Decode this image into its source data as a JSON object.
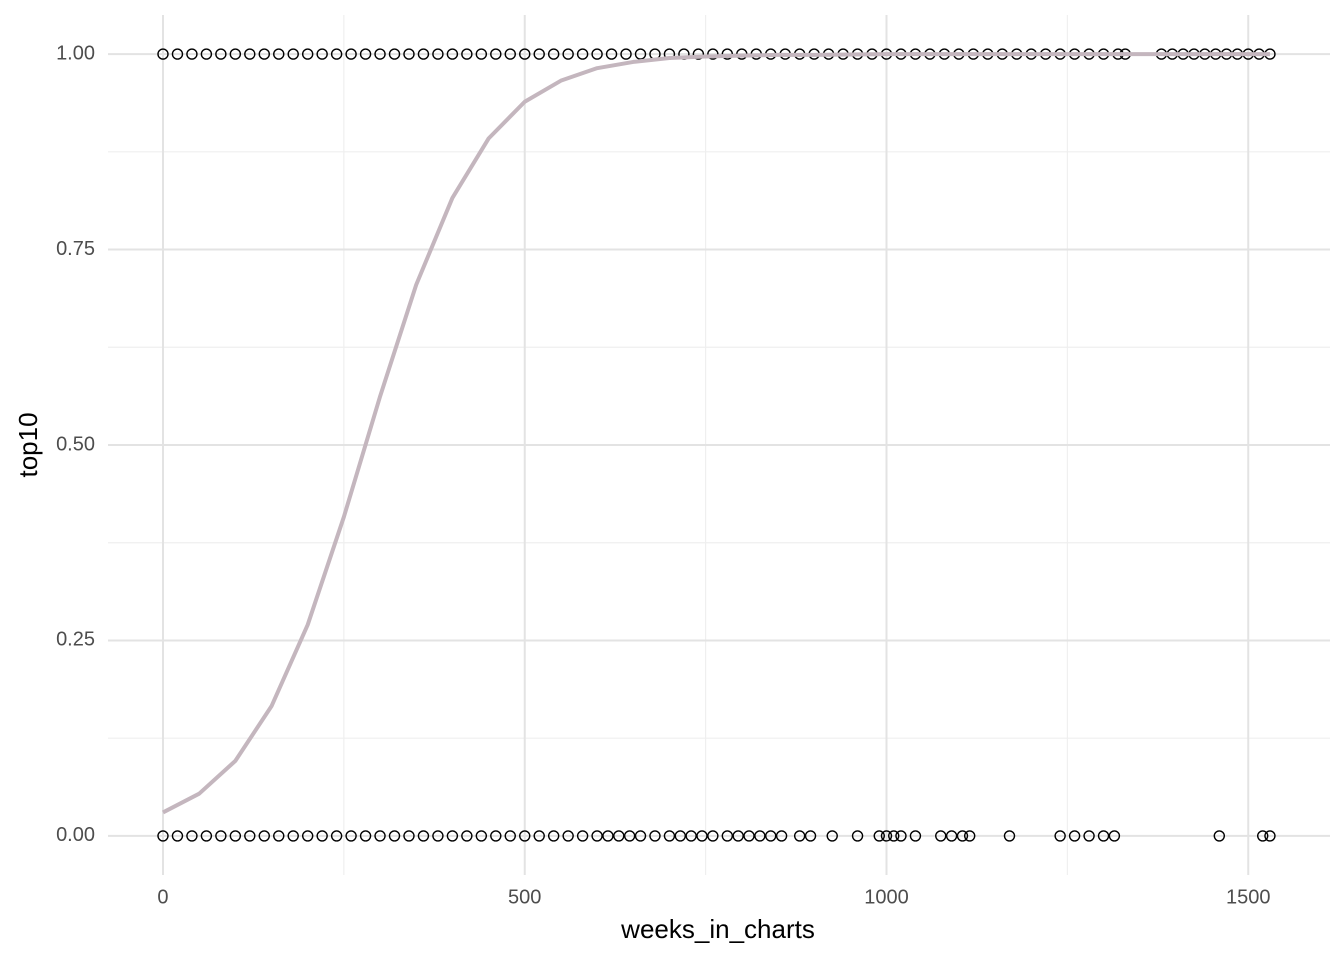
{
  "chart_data": {
    "type": "scatter",
    "x_label": "weeks_in_charts",
    "y_label": "top10",
    "x": [
      0,
      20,
      40,
      60,
      80,
      100,
      120,
      140,
      160,
      180,
      200,
      220,
      240,
      260,
      280,
      300,
      320,
      340,
      360,
      380,
      400,
      420,
      440,
      460,
      480,
      500,
      520,
      540,
      560,
      580,
      600,
      615,
      630,
      645,
      660,
      680,
      700,
      715,
      730,
      745,
      760,
      780,
      795,
      810,
      825,
      840,
      855,
      880,
      895,
      925,
      960,
      990,
      1000,
      1010,
      1020,
      1040,
      1075,
      1090,
      1105,
      1115,
      1170,
      1240,
      1260,
      1280,
      1300,
      1315,
      1460,
      1520,
      1530,
      0,
      20,
      40,
      60,
      80,
      100,
      120,
      140,
      160,
      180,
      200,
      220,
      240,
      260,
      280,
      300,
      320,
      340,
      360,
      380,
      400,
      420,
      440,
      460,
      480,
      500,
      520,
      540,
      560,
      580,
      600,
      620,
      640,
      660,
      680,
      700,
      720,
      740,
      760,
      780,
      800,
      820,
      840,
      860,
      880,
      900,
      920,
      940,
      960,
      980,
      1000,
      1020,
      1040,
      1060,
      1080,
      1100,
      1120,
      1140,
      1160,
      1180,
      1200,
      1220,
      1240,
      1260,
      1280,
      1300,
      1320,
      1330,
      1380,
      1395,
      1410,
      1425,
      1440,
      1455,
      1470,
      1485,
      1500,
      1515,
      1530
    ],
    "values": [
      0,
      0,
      0,
      0,
      0,
      0,
      0,
      0,
      0,
      0,
      0,
      0,
      0,
      0,
      0,
      0,
      0,
      0,
      0,
      0,
      0,
      0,
      0,
      0,
      0,
      0,
      0,
      0,
      0,
      0,
      0,
      0,
      0,
      0,
      0,
      0,
      0,
      0,
      0,
      0,
      0,
      0,
      0,
      0,
      0,
      0,
      0,
      0,
      0,
      0,
      0,
      0,
      0,
      0,
      0,
      0,
      0,
      0,
      0,
      0,
      0,
      0,
      0,
      0,
      0,
      0,
      0,
      0,
      0,
      1,
      1,
      1,
      1,
      1,
      1,
      1,
      1,
      1,
      1,
      1,
      1,
      1,
      1,
      1,
      1,
      1,
      1,
      1,
      1,
      1,
      1,
      1,
      1,
      1,
      1,
      1,
      1,
      1,
      1,
      1,
      1,
      1,
      1,
      1,
      1,
      1,
      1,
      1,
      1,
      1,
      1,
      1,
      1,
      1,
      1,
      1,
      1,
      1,
      1,
      1,
      1,
      1,
      1,
      1,
      1,
      1,
      1,
      1,
      1,
      1,
      1,
      1,
      1,
      1,
      1,
      1,
      1,
      1,
      1,
      1,
      1,
      1,
      1,
      1,
      1,
      1,
      1,
      1
    ],
    "point_color": "#000000",
    "fit": {
      "color": "#c4b6be",
      "x": [
        0,
        50,
        100,
        150,
        200,
        250,
        300,
        350,
        400,
        450,
        500,
        550,
        600,
        650,
        700,
        750,
        800,
        850,
        900,
        1000,
        1100,
        1200,
        1300,
        1400,
        1500,
        1530
      ],
      "values": [
        0.03,
        0.054,
        0.096,
        0.166,
        0.27,
        0.408,
        0.562,
        0.705,
        0.816,
        0.892,
        0.939,
        0.966,
        0.982,
        0.99,
        0.995,
        0.997,
        0.998,
        0.999,
        0.999,
        1,
        1,
        1,
        1,
        1,
        1,
        1
      ]
    },
    "xlim": [
      -76,
      1613
    ],
    "ylim": [
      -0.05,
      1.05
    ],
    "xticks": [
      0,
      500,
      1000,
      1500
    ],
    "yticks": [
      {
        "value": 0,
        "label": "0.00"
      },
      {
        "value": 0.25,
        "label": "0.25"
      },
      {
        "value": 0.5,
        "label": "0.50"
      },
      {
        "value": 0.75,
        "label": "0.75"
      },
      {
        "value": 1,
        "label": "1.00"
      }
    ],
    "x_minor_grid": [
      250,
      750,
      1250
    ],
    "y_minor_grid": [
      0.125,
      0.375,
      0.625,
      0.875
    ],
    "grid": true
  }
}
